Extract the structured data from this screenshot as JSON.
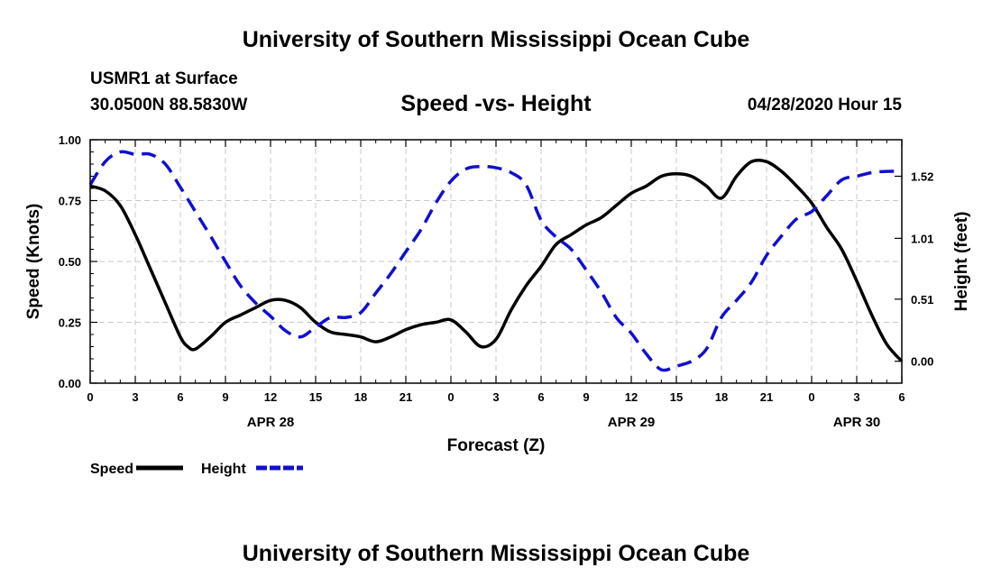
{
  "header": {
    "title": "University of Southern Mississippi Ocean Cube",
    "station": "USMR1 at Surface",
    "coords": "30.0500N 88.5830W",
    "datetime": "04/28/2020 Hour 15"
  },
  "footer": {
    "title": "University of Southern Mississippi Ocean Cube"
  },
  "chart_data": {
    "type": "line",
    "title": "Speed -vs- Height",
    "xlabel": "Forecast (Z)",
    "ylabel_left": "Speed (Knots)",
    "ylabel_right": "Height (feet)",
    "x_range_hours": [
      0,
      54
    ],
    "x_tick_labels": [
      "0",
      "3",
      "6",
      "9",
      "12",
      "15",
      "18",
      "21",
      "0",
      "3",
      "6",
      "9",
      "12",
      "15",
      "18",
      "21",
      "0",
      "3",
      "6"
    ],
    "date_labels": [
      {
        "hour": 12,
        "label": "APR 28"
      },
      {
        "hour": 36,
        "label": "APR 29"
      },
      {
        "hour": 51,
        "label": "APR 30"
      }
    ],
    "ylim_left": [
      0,
      1.0
    ],
    "y_ticks_left": [
      "0.00",
      "0.25",
      "0.50",
      "0.75",
      "1.00"
    ],
    "ylim_right": [
      -0.18,
      1.82
    ],
    "y_ticks_right": [
      {
        "value": 0.0,
        "label": "0.00"
      },
      {
        "value": 0.51,
        "label": "0.51"
      },
      {
        "value": 1.01,
        "label": "1.01"
      },
      {
        "value": 1.52,
        "label": "1.52"
      }
    ],
    "grid": true,
    "series": [
      {
        "name": "Speed",
        "color": "#000000",
        "axis": "left",
        "style": "solid",
        "x": [
          0,
          1,
          2,
          3,
          4,
          5,
          6,
          6.5,
          7,
          8,
          9,
          10,
          11,
          12,
          13,
          14,
          15,
          16,
          17,
          18,
          19,
          20,
          21,
          22,
          23,
          24,
          25,
          26,
          27,
          28,
          29,
          30,
          31,
          32,
          33,
          34,
          35,
          36,
          37,
          38,
          39,
          40,
          41,
          42,
          43,
          44,
          45,
          46,
          47,
          48,
          49,
          50,
          51,
          52,
          53,
          54
        ],
        "values": [
          0.81,
          0.79,
          0.73,
          0.61,
          0.47,
          0.33,
          0.19,
          0.15,
          0.14,
          0.19,
          0.25,
          0.28,
          0.31,
          0.34,
          0.34,
          0.31,
          0.25,
          0.21,
          0.2,
          0.19,
          0.17,
          0.19,
          0.22,
          0.24,
          0.25,
          0.26,
          0.21,
          0.15,
          0.18,
          0.3,
          0.4,
          0.48,
          0.57,
          0.61,
          0.65,
          0.68,
          0.73,
          0.78,
          0.81,
          0.85,
          0.86,
          0.85,
          0.81,
          0.76,
          0.85,
          0.91,
          0.91,
          0.87,
          0.81,
          0.74,
          0.64,
          0.55,
          0.42,
          0.28,
          0.16,
          0.09
        ]
      },
      {
        "name": "Height",
        "color": "#1010d0",
        "axis": "right",
        "style": "dashed",
        "x": [
          0,
          1,
          2,
          3,
          4,
          5,
          6,
          7,
          8,
          9,
          10,
          11,
          12,
          13,
          14,
          15,
          16,
          17,
          18,
          19,
          20,
          21,
          22,
          23,
          24,
          25,
          26,
          27,
          28,
          29,
          30,
          31,
          32,
          33,
          34,
          35,
          36,
          37,
          38,
          39,
          40,
          41,
          42,
          43,
          44,
          45,
          46,
          47,
          48,
          49,
          50,
          51,
          52,
          53,
          54
        ],
        "values": [
          1.45,
          1.64,
          1.72,
          1.7,
          1.7,
          1.62,
          1.43,
          1.23,
          1.03,
          0.82,
          0.62,
          0.48,
          0.37,
          0.25,
          0.2,
          0.28,
          0.36,
          0.36,
          0.4,
          0.56,
          0.72,
          0.9,
          1.08,
          1.3,
          1.48,
          1.58,
          1.6,
          1.59,
          1.55,
          1.45,
          1.16,
          1.02,
          0.92,
          0.75,
          0.57,
          0.36,
          0.23,
          0.06,
          -0.07,
          -0.04,
          0.0,
          0.1,
          0.36,
          0.5,
          0.65,
          0.87,
          1.03,
          1.17,
          1.23,
          1.36,
          1.49,
          1.52,
          1.55,
          1.56,
          1.56
        ]
      }
    ],
    "legend": [
      {
        "label": "Speed",
        "color": "#000000",
        "style": "solid"
      },
      {
        "label": "Height",
        "color": "#1010d0",
        "style": "dashed"
      }
    ],
    "legend_position": "bottom-left"
  }
}
